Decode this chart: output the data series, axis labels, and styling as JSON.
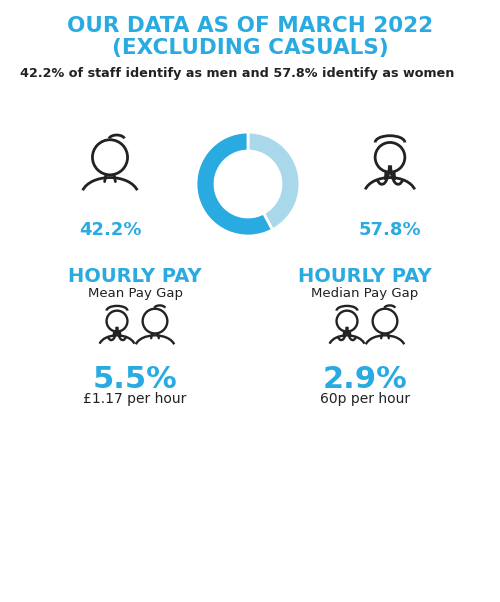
{
  "title_line1": "OUR DATA AS OF MARCH 2022",
  "title_line2": "(EXCLUDING CASUALS)",
  "title_color": "#29ABE2",
  "subtitle": "42.2% of staff identify as men and 57.8% identify as women",
  "subtitle_color": "#222222",
  "men_pct": 42.2,
  "women_pct": 57.8,
  "men_label": "42.2%",
  "women_label": "57.8%",
  "donut_color_men": "#A8D8EA",
  "donut_color_women": "#29ABE2",
  "label_color": "#29ABE2",
  "hourly_pay_color": "#29ABE2",
  "mean_title": "HOURLY PAY",
  "mean_subtitle": "Mean Pay Gap",
  "mean_pct": "5.5%",
  "mean_amount": "£1.17 per hour",
  "median_title": "HOURLY PAY",
  "median_subtitle": "Median Pay Gap",
  "median_pct": "2.9%",
  "median_amount": "60p per hour",
  "figure_color": "#222222",
  "bg_color": "#ffffff",
  "icon_color": "#222222"
}
